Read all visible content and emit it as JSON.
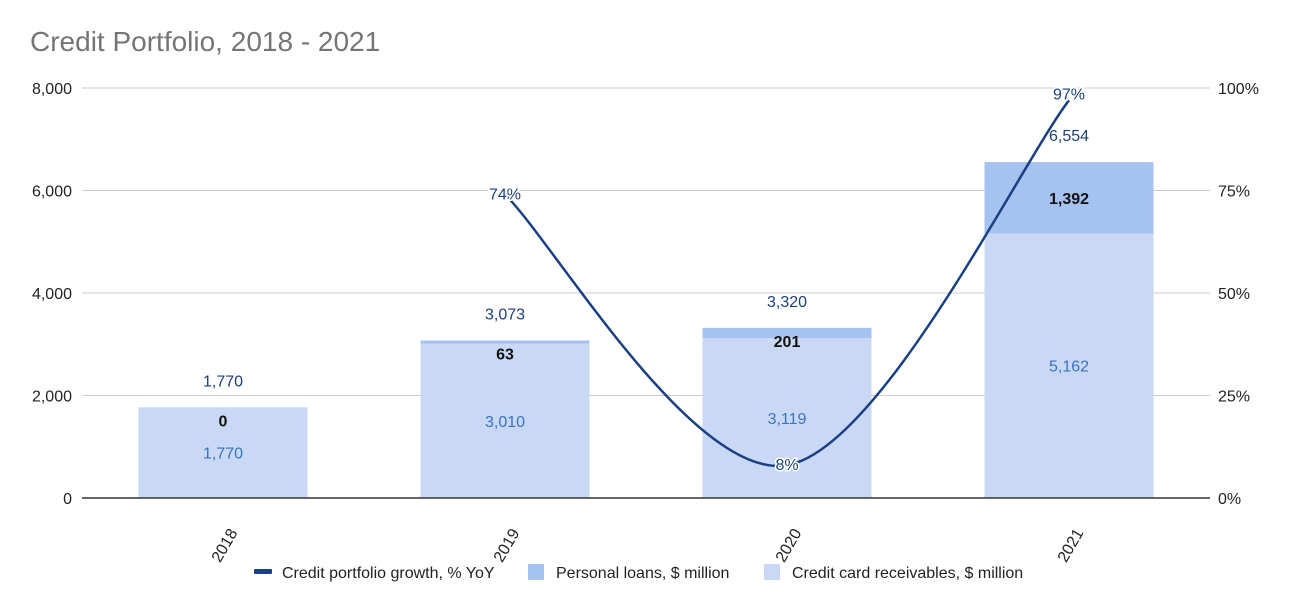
{
  "chart_data": {
    "type": "bar",
    "stacked": true,
    "title": "Credit Portfolio, 2018 - 2021",
    "categories": [
      "2018",
      "2019",
      "2020",
      "2021"
    ],
    "left_axis": {
      "min": 0,
      "max": 8000,
      "ticks": [
        0,
        2000,
        4000,
        6000,
        8000
      ],
      "tick_labels": [
        "0",
        "2,000",
        "4,000",
        "6,000",
        "8,000"
      ]
    },
    "right_axis": {
      "min": 0,
      "max": 100,
      "ticks": [
        0,
        25,
        50,
        75,
        100
      ],
      "tick_labels": [
        "0%",
        "25%",
        "50%",
        "75%",
        "100%"
      ]
    },
    "series": [
      {
        "name": "Credit card receivables, $ million",
        "type": "bar",
        "axis": "left",
        "color": "#c9d9f5",
        "values": [
          1770,
          3010,
          3119,
          5162
        ],
        "labels": [
          "1,770",
          "3,010",
          "3,119",
          "5,162"
        ],
        "label_color": "#3a72c4"
      },
      {
        "name": "Personal loans, $ million",
        "type": "bar",
        "axis": "left",
        "color": "#a6c2f0",
        "values": [
          0,
          63,
          201,
          1392
        ],
        "labels": [
          "0",
          "63",
          "201",
          "1,392"
        ],
        "label_color": "#111111"
      },
      {
        "name": "Credit portfolio growth, % YoY",
        "type": "line",
        "axis": "right",
        "color": "#1b3f83",
        "values": [
          null,
          74,
          8,
          97
        ],
        "labels": [
          "",
          "74%",
          "8%",
          "97%"
        ],
        "label_color": "#1b3f83"
      }
    ],
    "totals": {
      "values": [
        1770,
        3073,
        3320,
        6554
      ],
      "labels": [
        "1,770",
        "3,073",
        "3,320",
        "6,554"
      ],
      "color": "#1b3f83"
    },
    "legend": {
      "position": "bottom",
      "items": [
        "Credit portfolio growth, % YoY",
        "Personal loans, $ million",
        "Credit card receivables, $ million"
      ]
    },
    "grid": true
  }
}
